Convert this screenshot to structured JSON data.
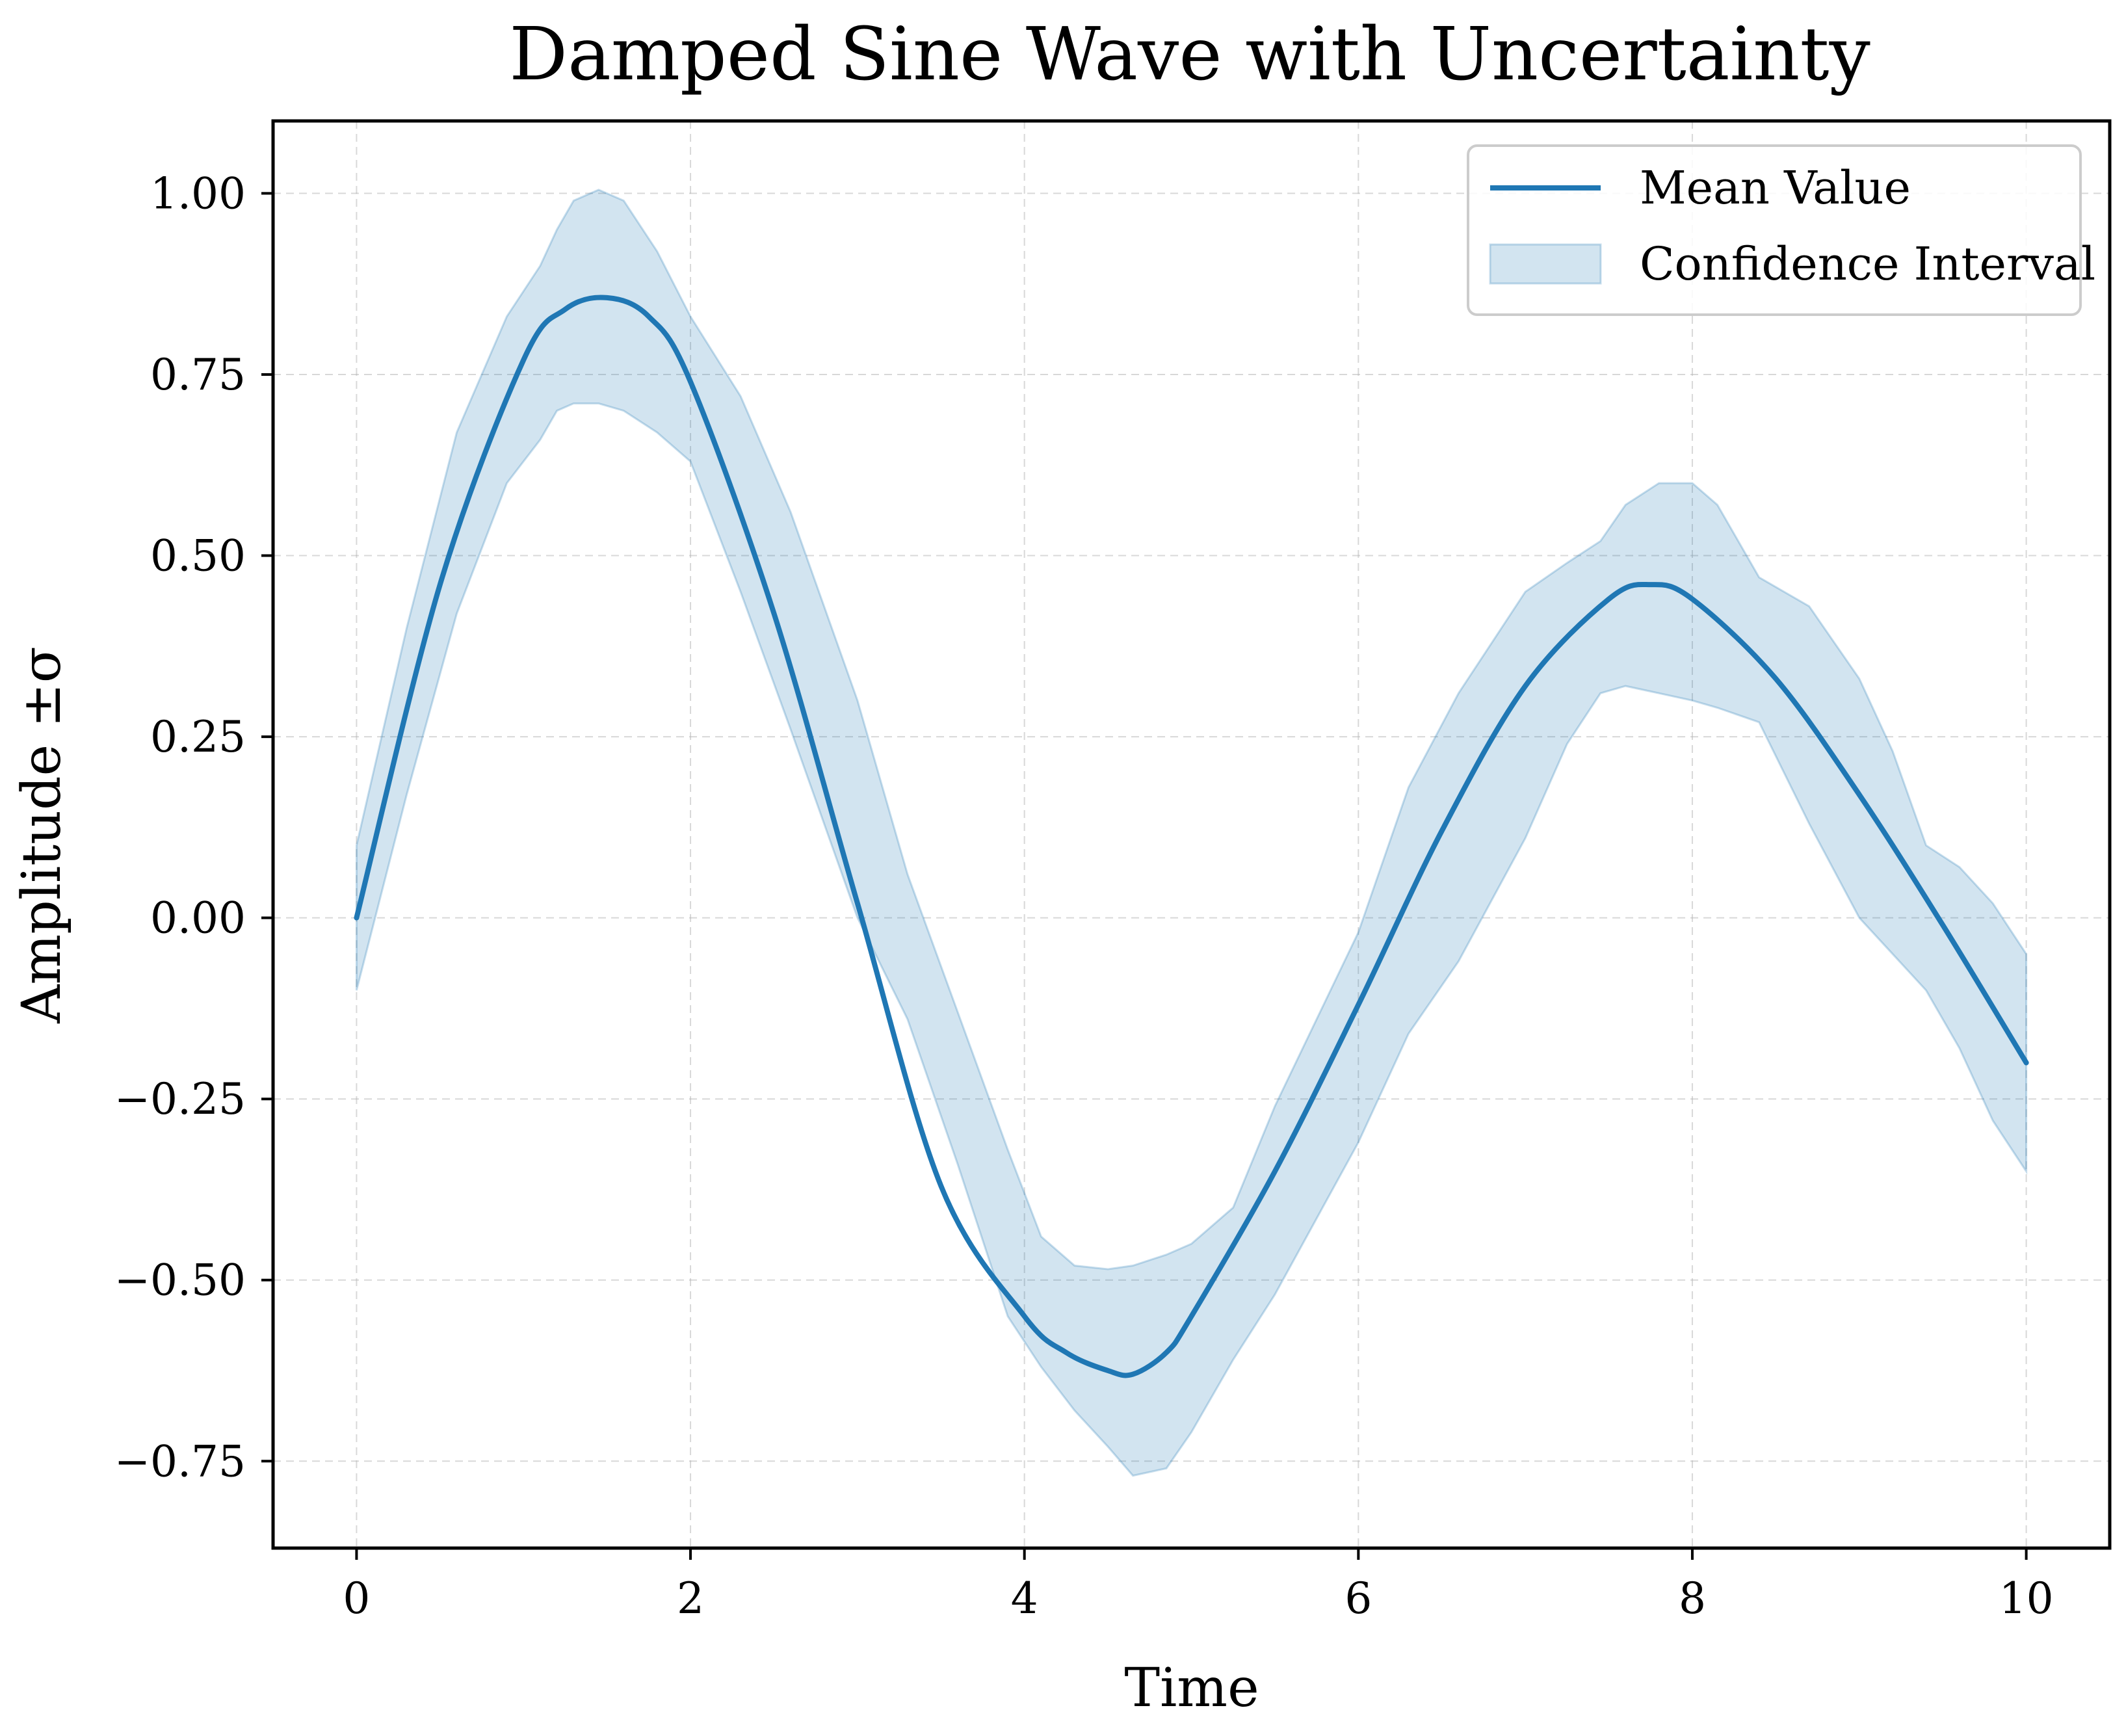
{
  "chart_data": {
    "type": "line",
    "title": "Damped Sine Wave with Uncertainty",
    "xlabel": "Time",
    "ylabel": "Amplitude ±σ",
    "xlim": [
      -0.5,
      10.5
    ],
    "ylim": [
      -0.87,
      1.1
    ],
    "x_ticks": [
      0,
      2,
      4,
      6,
      8,
      10
    ],
    "x_tick_labels": [
      "0",
      "2",
      "4",
      "6",
      "8",
      "10"
    ],
    "y_ticks": [
      1.0,
      0.75,
      0.5,
      0.25,
      0.0,
      -0.25,
      -0.5,
      -0.75
    ],
    "y_tick_labels": [
      "1.00",
      "0.75",
      "0.50",
      "0.25",
      "0.00",
      "−0.25",
      "−0.50",
      "−0.75"
    ],
    "grid": true,
    "legend_position": "top-right",
    "series": [
      {
        "name": "Mean Value",
        "kind": "line",
        "color": "#1f77b4",
        "x": [
          0,
          0.5,
          1.0,
          1.25,
          1.5,
          1.75,
          2.0,
          2.5,
          3.0,
          3.5,
          4.0,
          4.25,
          4.5,
          4.65,
          4.85,
          5.0,
          5.5,
          6.0,
          6.5,
          7.0,
          7.5,
          7.75,
          8.0,
          8.5,
          9.0,
          9.5,
          10.0
        ],
        "y": [
          0.0,
          0.46,
          0.77,
          0.84,
          0.856,
          0.83,
          0.74,
          0.42,
          0.02,
          -0.37,
          -0.55,
          -0.6,
          -0.625,
          -0.63,
          -0.6,
          -0.55,
          -0.35,
          -0.12,
          0.12,
          0.32,
          0.44,
          0.46,
          0.44,
          0.33,
          0.17,
          -0.01,
          -0.2
        ]
      },
      {
        "name": "Confidence Interval",
        "kind": "band",
        "color": "#1f77b4",
        "opacity": 0.2,
        "x": [
          0,
          0.3,
          0.6,
          0.9,
          1.1,
          1.2,
          1.3,
          1.45,
          1.6,
          1.8,
          2.0,
          2.3,
          2.6,
          3.0,
          3.3,
          3.6,
          3.9,
          4.1,
          4.3,
          4.5,
          4.65,
          4.85,
          5.0,
          5.25,
          5.5,
          6.0,
          6.3,
          6.6,
          7.0,
          7.25,
          7.45,
          7.6,
          7.8,
          8.0,
          8.15,
          8.4,
          8.7,
          9.0,
          9.2,
          9.4,
          9.6,
          9.8,
          10.0
        ],
        "upper": [
          0.1,
          0.4,
          0.67,
          0.83,
          0.9,
          0.95,
          0.99,
          1.005,
          0.99,
          0.92,
          0.83,
          0.72,
          0.56,
          0.3,
          0.06,
          -0.13,
          -0.32,
          -0.44,
          -0.48,
          -0.485,
          -0.48,
          -0.465,
          -0.45,
          -0.4,
          -0.26,
          -0.02,
          0.18,
          0.31,
          0.45,
          0.49,
          0.52,
          0.57,
          0.6,
          0.6,
          0.57,
          0.47,
          0.43,
          0.33,
          0.23,
          0.1,
          0.07,
          0.02,
          -0.05
        ],
        "lower": [
          -0.1,
          0.17,
          0.42,
          0.6,
          0.66,
          0.7,
          0.71,
          0.71,
          0.7,
          0.67,
          0.63,
          0.45,
          0.26,
          0.0,
          -0.14,
          -0.34,
          -0.55,
          -0.62,
          -0.68,
          -0.73,
          -0.77,
          -0.76,
          -0.71,
          -0.61,
          -0.52,
          -0.31,
          -0.16,
          -0.06,
          0.11,
          0.24,
          0.31,
          0.32,
          0.31,
          0.3,
          0.29,
          0.27,
          0.13,
          0.0,
          -0.05,
          -0.1,
          -0.18,
          -0.28,
          -0.35
        ]
      }
    ]
  }
}
